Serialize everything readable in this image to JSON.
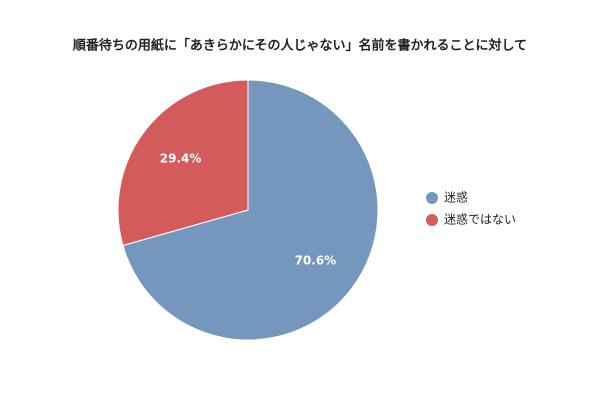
{
  "chart_data": {
    "type": "pie",
    "title": "順番待ちの用紙に「あきらかにその人じゃない」名前を書かれることに対して",
    "categories": [
      "迷惑",
      "迷惑ではない"
    ],
    "values": [
      70.6,
      29.4
    ],
    "value_labels": [
      "70.6%",
      "29.4%"
    ],
    "colors": [
      "#7596bd",
      "#d45b5b"
    ],
    "legend": "right"
  }
}
